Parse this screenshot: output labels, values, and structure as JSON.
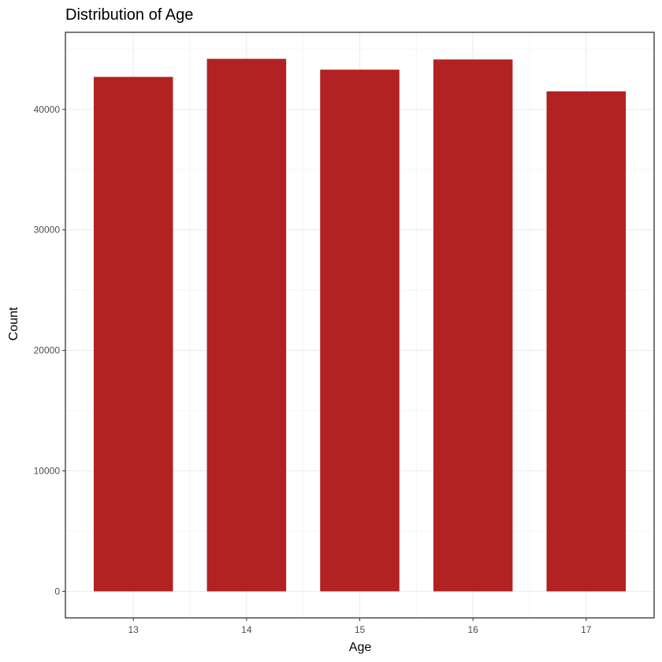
{
  "chart_data": {
    "type": "bar",
    "title": "Distribution of Age",
    "xlabel": "Age",
    "ylabel": "Count",
    "categories": [
      "13",
      "14",
      "15",
      "16",
      "17"
    ],
    "values": [
      42700,
      44200,
      43300,
      44150,
      41500
    ],
    "ylim": [
      -2200,
      46400
    ],
    "yticks": [
      0,
      10000,
      20000,
      30000,
      40000
    ],
    "ytick_labels": [
      "0",
      "10000",
      "20000",
      "30000",
      "40000"
    ],
    "grid": true,
    "legend": "none",
    "colors": {
      "bar": "#B22222",
      "panel_border": "#333333",
      "grid_major": "#ebebeb",
      "grid_minor": "#f5f5f5",
      "tick_text": "#4d4d4d",
      "tick_mark": "#333333"
    }
  }
}
